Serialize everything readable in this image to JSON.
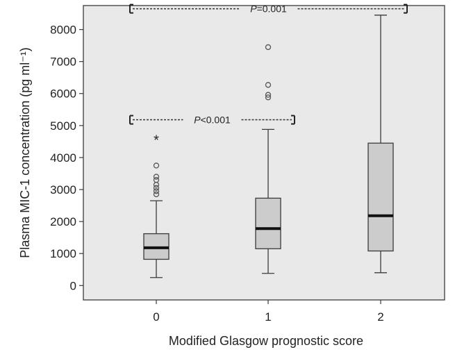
{
  "chart_data": {
    "type": "box",
    "xlabel": "Modified Glasgow prognostic score",
    "ylabel": "Plasma MIC-1 concentration (pg ml⁻¹)",
    "ylim": [
      -450,
      8750
    ],
    "yticks": [
      0,
      1000,
      2000,
      3000,
      4000,
      5000,
      6000,
      7000,
      8000
    ],
    "ytick_labels": [
      "0",
      "1000",
      "2000",
      "3000",
      "4000",
      "5000",
      "6000",
      "7000",
      "8000"
    ],
    "categories": [
      "0",
      "1",
      "2"
    ],
    "boxes": [
      {
        "category": "0",
        "min": 250,
        "q1": 820,
        "median": 1180,
        "q3": 1620,
        "max": 2650,
        "outliers": [
          2850,
          2950,
          3050,
          3150,
          3300,
          3400,
          3750
        ],
        "extremes": [
          4600
        ]
      },
      {
        "category": "1",
        "min": 380,
        "q1": 1150,
        "median": 1780,
        "q3": 2730,
        "max": 4880,
        "outliers": [
          5880,
          5960,
          6270,
          7450
        ],
        "extremes": []
      },
      {
        "category": "2",
        "min": 400,
        "q1": 1080,
        "median": 2180,
        "q3": 4450,
        "max": 8450,
        "outliers": [],
        "extremes": []
      }
    ],
    "annotations": [
      {
        "from": "0",
        "to": "2",
        "at": 8650,
        "italic": "P",
        "text": "=0.001"
      },
      {
        "from": "0",
        "to": "1",
        "at": 5180,
        "italic": "P",
        "text": "<0.001"
      }
    ],
    "colors": {
      "box_fill": "#cccccc",
      "panel_background": "#e9e9e9",
      "stroke": "#3a3a3a",
      "median": "#111111"
    }
  }
}
